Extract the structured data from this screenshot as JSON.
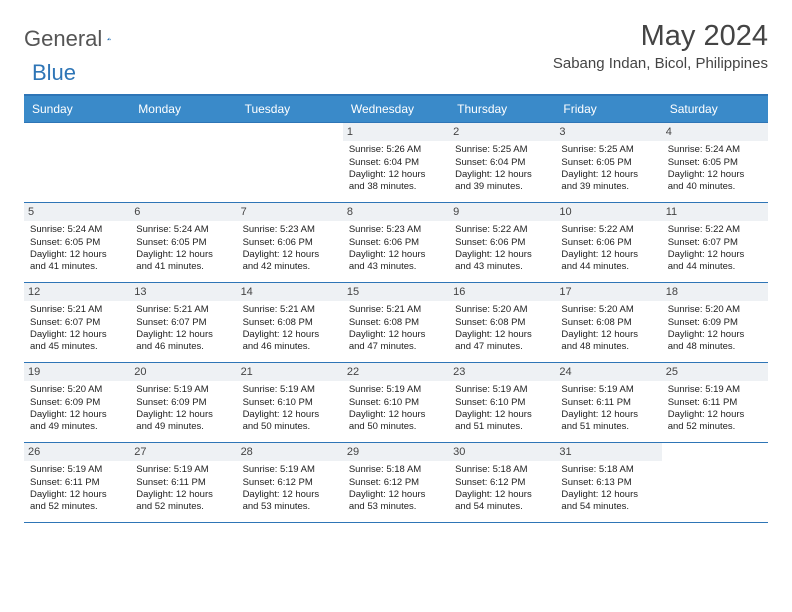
{
  "logo": {
    "text1": "General",
    "text2": "Blue"
  },
  "title": "May 2024",
  "location": "Sabang Indan, Bicol, Philippines",
  "colors": {
    "header_bg": "#3a8ac9",
    "border": "#2e75b6",
    "daynum_bg": "#eef1f4",
    "text": "#222222"
  },
  "day_headers": [
    "Sunday",
    "Monday",
    "Tuesday",
    "Wednesday",
    "Thursday",
    "Friday",
    "Saturday"
  ],
  "weeks": [
    [
      null,
      null,
      null,
      {
        "n": "1",
        "sr": "5:26 AM",
        "ss": "6:04 PM",
        "dl": "12 hours and 38 minutes."
      },
      {
        "n": "2",
        "sr": "5:25 AM",
        "ss": "6:04 PM",
        "dl": "12 hours and 39 minutes."
      },
      {
        "n": "3",
        "sr": "5:25 AM",
        "ss": "6:05 PM",
        "dl": "12 hours and 39 minutes."
      },
      {
        "n": "4",
        "sr": "5:24 AM",
        "ss": "6:05 PM",
        "dl": "12 hours and 40 minutes."
      }
    ],
    [
      {
        "n": "5",
        "sr": "5:24 AM",
        "ss": "6:05 PM",
        "dl": "12 hours and 41 minutes."
      },
      {
        "n": "6",
        "sr": "5:24 AM",
        "ss": "6:05 PM",
        "dl": "12 hours and 41 minutes."
      },
      {
        "n": "7",
        "sr": "5:23 AM",
        "ss": "6:06 PM",
        "dl": "12 hours and 42 minutes."
      },
      {
        "n": "8",
        "sr": "5:23 AM",
        "ss": "6:06 PM",
        "dl": "12 hours and 43 minutes."
      },
      {
        "n": "9",
        "sr": "5:22 AM",
        "ss": "6:06 PM",
        "dl": "12 hours and 43 minutes."
      },
      {
        "n": "10",
        "sr": "5:22 AM",
        "ss": "6:06 PM",
        "dl": "12 hours and 44 minutes."
      },
      {
        "n": "11",
        "sr": "5:22 AM",
        "ss": "6:07 PM",
        "dl": "12 hours and 44 minutes."
      }
    ],
    [
      {
        "n": "12",
        "sr": "5:21 AM",
        "ss": "6:07 PM",
        "dl": "12 hours and 45 minutes."
      },
      {
        "n": "13",
        "sr": "5:21 AM",
        "ss": "6:07 PM",
        "dl": "12 hours and 46 minutes."
      },
      {
        "n": "14",
        "sr": "5:21 AM",
        "ss": "6:08 PM",
        "dl": "12 hours and 46 minutes."
      },
      {
        "n": "15",
        "sr": "5:21 AM",
        "ss": "6:08 PM",
        "dl": "12 hours and 47 minutes."
      },
      {
        "n": "16",
        "sr": "5:20 AM",
        "ss": "6:08 PM",
        "dl": "12 hours and 47 minutes."
      },
      {
        "n": "17",
        "sr": "5:20 AM",
        "ss": "6:08 PM",
        "dl": "12 hours and 48 minutes."
      },
      {
        "n": "18",
        "sr": "5:20 AM",
        "ss": "6:09 PM",
        "dl": "12 hours and 48 minutes."
      }
    ],
    [
      {
        "n": "19",
        "sr": "5:20 AM",
        "ss": "6:09 PM",
        "dl": "12 hours and 49 minutes."
      },
      {
        "n": "20",
        "sr": "5:19 AM",
        "ss": "6:09 PM",
        "dl": "12 hours and 49 minutes."
      },
      {
        "n": "21",
        "sr": "5:19 AM",
        "ss": "6:10 PM",
        "dl": "12 hours and 50 minutes."
      },
      {
        "n": "22",
        "sr": "5:19 AM",
        "ss": "6:10 PM",
        "dl": "12 hours and 50 minutes."
      },
      {
        "n": "23",
        "sr": "5:19 AM",
        "ss": "6:10 PM",
        "dl": "12 hours and 51 minutes."
      },
      {
        "n": "24",
        "sr": "5:19 AM",
        "ss": "6:11 PM",
        "dl": "12 hours and 51 minutes."
      },
      {
        "n": "25",
        "sr": "5:19 AM",
        "ss": "6:11 PM",
        "dl": "12 hours and 52 minutes."
      }
    ],
    [
      {
        "n": "26",
        "sr": "5:19 AM",
        "ss": "6:11 PM",
        "dl": "12 hours and 52 minutes."
      },
      {
        "n": "27",
        "sr": "5:19 AM",
        "ss": "6:11 PM",
        "dl": "12 hours and 52 minutes."
      },
      {
        "n": "28",
        "sr": "5:19 AM",
        "ss": "6:12 PM",
        "dl": "12 hours and 53 minutes."
      },
      {
        "n": "29",
        "sr": "5:18 AM",
        "ss": "6:12 PM",
        "dl": "12 hours and 53 minutes."
      },
      {
        "n": "30",
        "sr": "5:18 AM",
        "ss": "6:12 PM",
        "dl": "12 hours and 54 minutes."
      },
      {
        "n": "31",
        "sr": "5:18 AM",
        "ss": "6:13 PM",
        "dl": "12 hours and 54 minutes."
      },
      null
    ]
  ]
}
